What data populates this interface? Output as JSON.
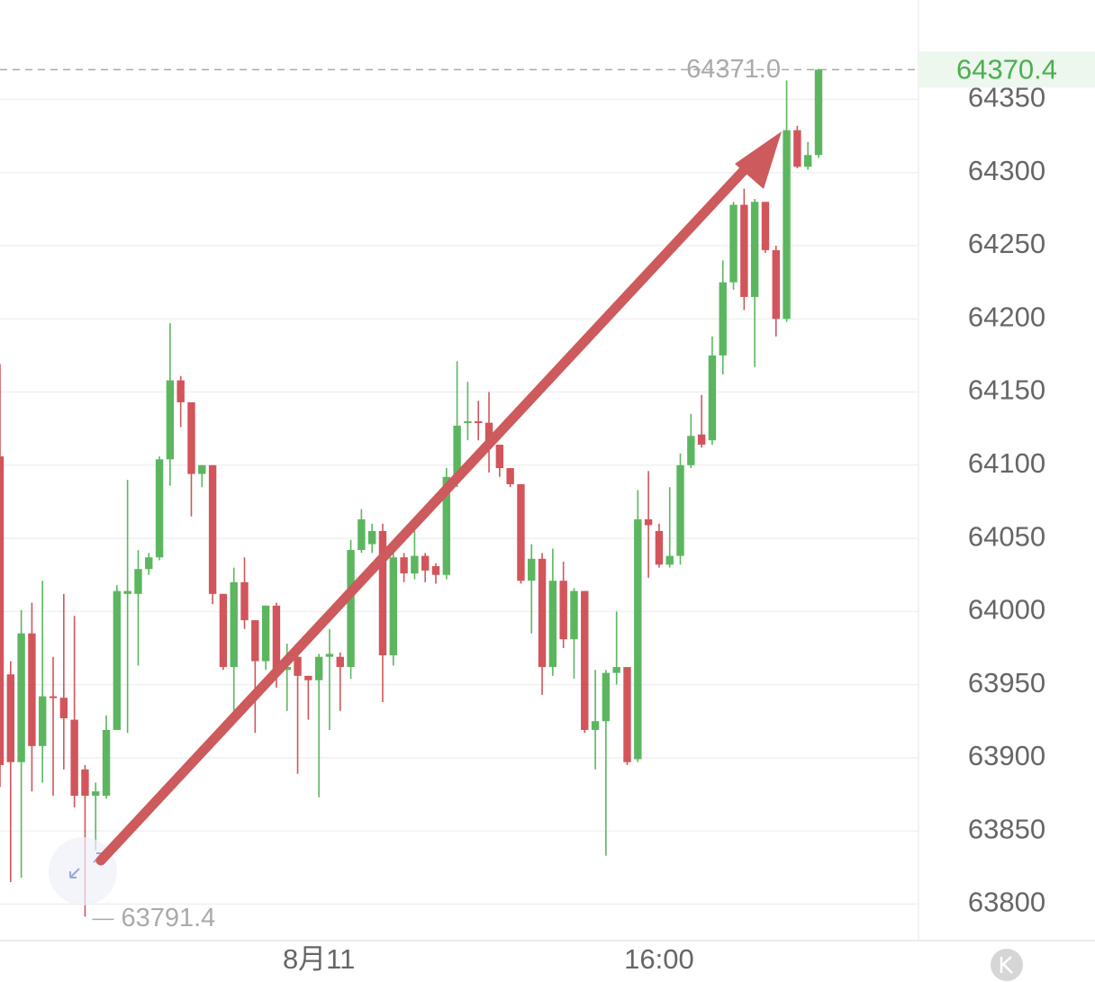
{
  "chart_data": {
    "type": "candlestick",
    "categories": [
      null,
      null,
      null,
      null,
      null,
      null,
      null,
      null,
      null,
      null,
      null,
      null,
      null,
      null,
      null,
      null,
      null,
      null,
      null,
      null,
      null,
      null,
      null,
      null,
      null,
      null,
      null,
      null,
      null,
      null,
      "8月11",
      null,
      null,
      null,
      null,
      null,
      null,
      null,
      null,
      null,
      null,
      null,
      null,
      null,
      null,
      null,
      null,
      null,
      null,
      null,
      null,
      null,
      null,
      null,
      null,
      null,
      null,
      null,
      null,
      null,
      null,
      null,
      "16:00",
      null,
      null,
      null,
      null,
      null,
      null,
      null,
      null,
      null,
      null,
      null,
      null,
      null,
      null,
      null
    ],
    "open": [
      64106,
      63957,
      63897,
      63985,
      63908,
      63942,
      63941,
      63926,
      63892,
      63874,
      63874,
      63919,
      64012,
      64012,
      64029,
      64037,
      64104,
      64158,
      64143,
      64094,
      64100,
      64012,
      63962,
      64020,
      63994,
      63966,
      64004,
      63960,
      63969,
      63956,
      63953,
      63969,
      63969,
      63962,
      64042,
      64046,
      64055,
      63970,
      64037,
      64026,
      64038,
      64031,
      64025,
      64092,
      64129,
      64130,
      64129,
      64114,
      64098,
      64087,
      64021,
      64036,
      63962,
      64021,
      63981,
      64014,
      63919,
      63925,
      63958,
      63962,
      63899,
      64063,
      64055,
      64032,
      64038,
      64100,
      64121,
      64117,
      64175,
      64225,
      64278,
      64215,
      64280,
      64247,
      64200,
      64329,
      64304,
      64312
    ],
    "high": [
      64169,
      63966,
      64001,
      64006,
      64021,
      63969,
      64012,
      63997,
      63895,
      63883,
      63929,
      64018,
      64090,
      64042,
      64040,
      64106,
      64197,
      64161,
      64143,
      64100,
      64100,
      64012,
      64030,
      64037,
      63994,
      64004,
      64006,
      63978,
      63972,
      63956,
      63971,
      63988,
      63972,
      64049,
      64070,
      64060,
      64060,
      64040,
      64040,
      64055,
      64040,
      64033,
      64098,
      64171,
      64157,
      64144,
      64150,
      64114,
      64098,
      64087,
      64046,
      64040,
      64043,
      64034,
      64016,
      64014,
      63960,
      63960,
      64000,
      63962,
      64083,
      64096,
      64060,
      64085,
      64108,
      64135,
      64148,
      64188,
      64240,
      64280,
      64289,
      64282,
      64280,
      64250,
      64363,
      64332,
      64321,
      64371
    ],
    "low": [
      63880,
      63815,
      63818,
      63877,
      63883,
      63874,
      63892,
      63866,
      63791.4,
      63837,
      63872,
      63919,
      63917,
      63963,
      64025,
      64035,
      64086,
      64126,
      64065,
      64085,
      64005,
      63960,
      63932,
      63988,
      63917,
      63960,
      63948,
      63932,
      63889,
      63926,
      63873,
      63919,
      63932,
      63954,
      64040,
      64040,
      63938,
      63963,
      64020,
      64022,
      64020,
      64019,
      64022,
      64085,
      64117,
      64117,
      64095,
      64092,
      64085,
      64019,
      63985,
      63943,
      63956,
      63975,
      63954,
      63917,
      63892,
      63833,
      63950,
      63895,
      63897,
      64023,
      64030,
      64030,
      64032,
      64098,
      64112,
      64114,
      64162,
      64220,
      64206,
      64167,
      64245,
      64188,
      64198,
      64303,
      64302,
      64310
    ],
    "close": [
      63895,
      63897,
      63985,
      63908,
      63942,
      63941,
      63927,
      63874,
      63874,
      63877,
      63919,
      64014,
      64014,
      64029,
      64037,
      64104,
      64158,
      64143,
      64094,
      64100,
      64012,
      63962,
      64020,
      63994,
      63966,
      64004,
      63957,
      63962,
      63956,
      63953,
      63969,
      63971,
      63962,
      64042,
      64063,
      64055,
      63970,
      64037,
      64026,
      64038,
      64028,
      64025,
      64092,
      64127,
      64130,
      64129,
      64114,
      64098,
      64087,
      64021,
      64036,
      63962,
      64021,
      63981,
      64014,
      63919,
      63925,
      63958,
      63962,
      63897,
      64063,
      64059,
      64032,
      64038,
      64100,
      64120,
      64114,
      64175,
      64225,
      64278,
      64215,
      64280,
      64247,
      64200,
      64329,
      64304,
      64312,
      64370.4
    ],
    "up_color": "#5cb660",
    "down_color": "#d2555b",
    "ylim": [
      63775,
      64418
    ],
    "yticks": [
      63800,
      63850,
      63900,
      63950,
      64000,
      64050,
      64100,
      64150,
      64200,
      64250,
      64300,
      64350
    ],
    "grid": true,
    "annotations": {
      "high_label": "64371.0",
      "low_label": "63791.4",
      "last_price_label": "64370.4"
    }
  }
}
